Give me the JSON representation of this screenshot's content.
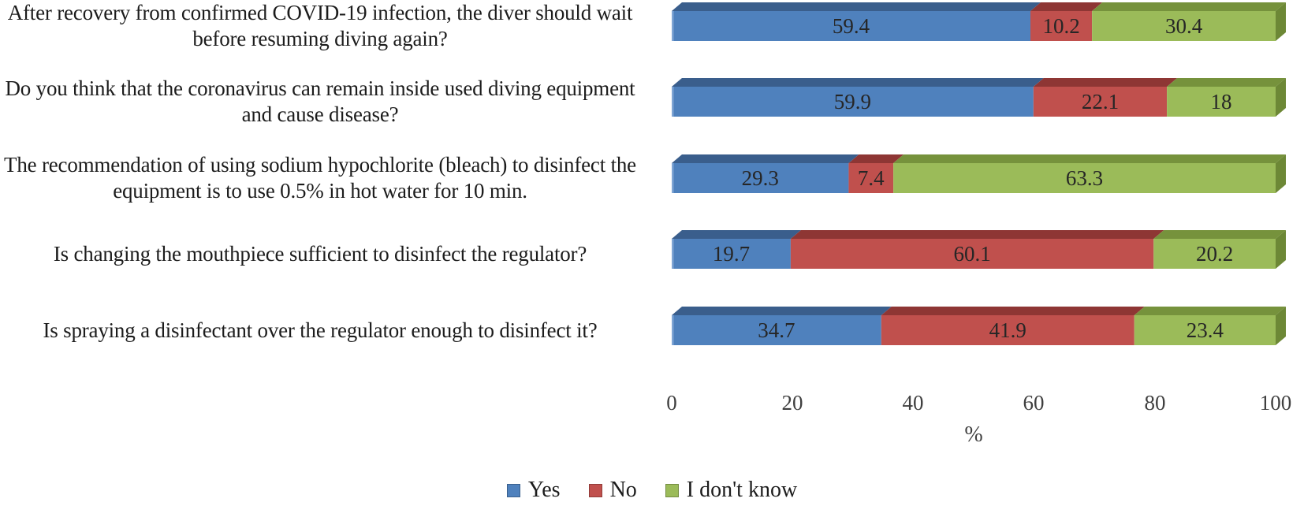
{
  "figure": {
    "background": "#ffffff"
  },
  "chart_data": {
    "type": "bar",
    "orientation": "horizontal",
    "stacked": true,
    "style_3d": true,
    "title": "",
    "xlabel": "%",
    "ylabel": "",
    "xlim": [
      0,
      100
    ],
    "ticks": [
      0,
      20,
      40,
      60,
      80,
      100
    ],
    "grid": false,
    "legend_position": "bottom",
    "value_labels": "inside",
    "categories": [
      "After recovery from confirmed COVID-19 infection, the diver should wait before resuming diving again?",
      "Do you think that the coronavirus can remain inside used diving equipment and cause disease?",
      "The recommendation of using sodium hypochlorite (bleach) to disinfect the equipment is to use 0.5% in hot water for 10 min.",
      "Is changing the mouthpiece sufficient to disinfect the regulator?",
      "Is spraying a disinfectant over the regulator enough to disinfect it?"
    ],
    "series": [
      {
        "name": "Yes",
        "color": "#4f81bd",
        "color_top": "#3a5e8c",
        "color_side": "#2f4d73",
        "edge_color": "#7fa5d4",
        "values": [
          59.4,
          59.9,
          29.3,
          19.7,
          34.7
        ]
      },
      {
        "name": "No",
        "color": "#c0504d",
        "color_top": "#8e3634",
        "color_side": "#7a2e2c",
        "values": [
          10.2,
          22.1,
          7.4,
          60.1,
          41.9
        ]
      },
      {
        "name": "I don't know",
        "color": "#9bbb59",
        "color_top": "#76923c",
        "color_side": "#6d8836",
        "values": [
          30.4,
          18,
          63.3,
          20.2,
          23.4
        ]
      }
    ],
    "value_label_color": "#262626"
  }
}
